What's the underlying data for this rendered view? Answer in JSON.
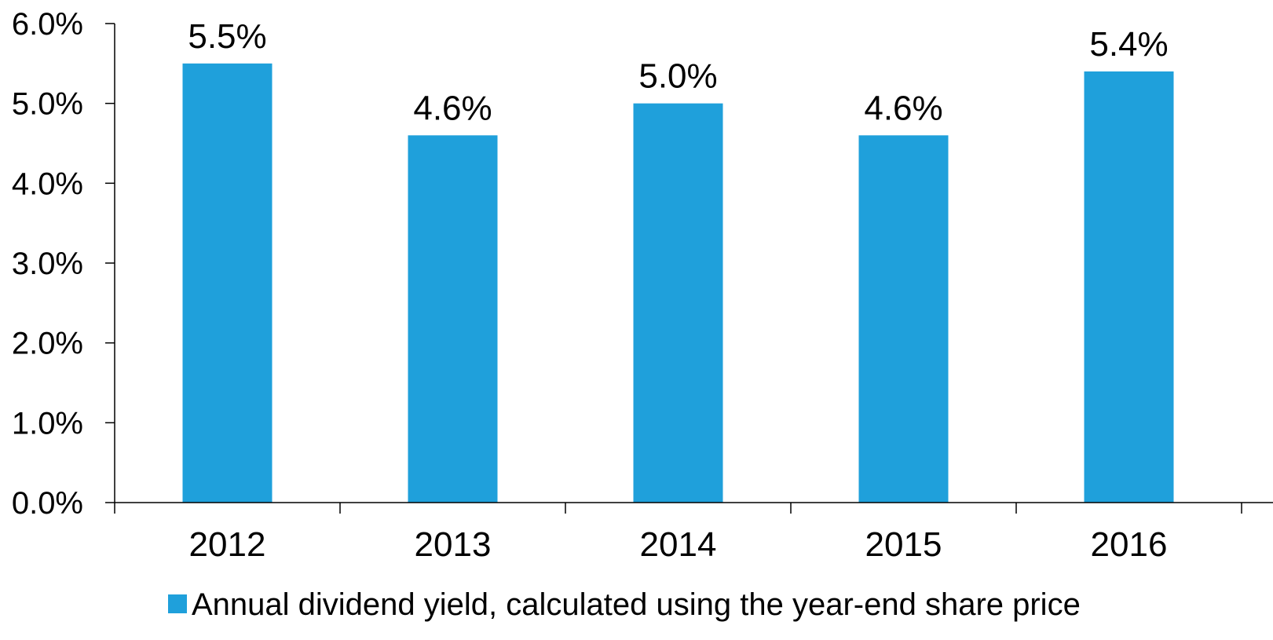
{
  "chart_data": {
    "type": "bar",
    "categories": [
      "2012",
      "2013",
      "2014",
      "2015",
      "2016"
    ],
    "series": [
      {
        "name": "Annual dividend yield, calculated using the year-end share price",
        "values": [
          5.5,
          4.6,
          5.0,
          4.6,
          5.4
        ],
        "color": "#1fa0db"
      }
    ],
    "data_labels": [
      "5.5%",
      "4.6%",
      "5.0%",
      "4.6%",
      "5.4%"
    ],
    "yticks": [
      "0.0%",
      "1.0%",
      "2.0%",
      "3.0%",
      "4.0%",
      "5.0%",
      "6.0%"
    ],
    "ylim": [
      0,
      6
    ],
    "grid": false,
    "legend_position": "bottom-center"
  }
}
